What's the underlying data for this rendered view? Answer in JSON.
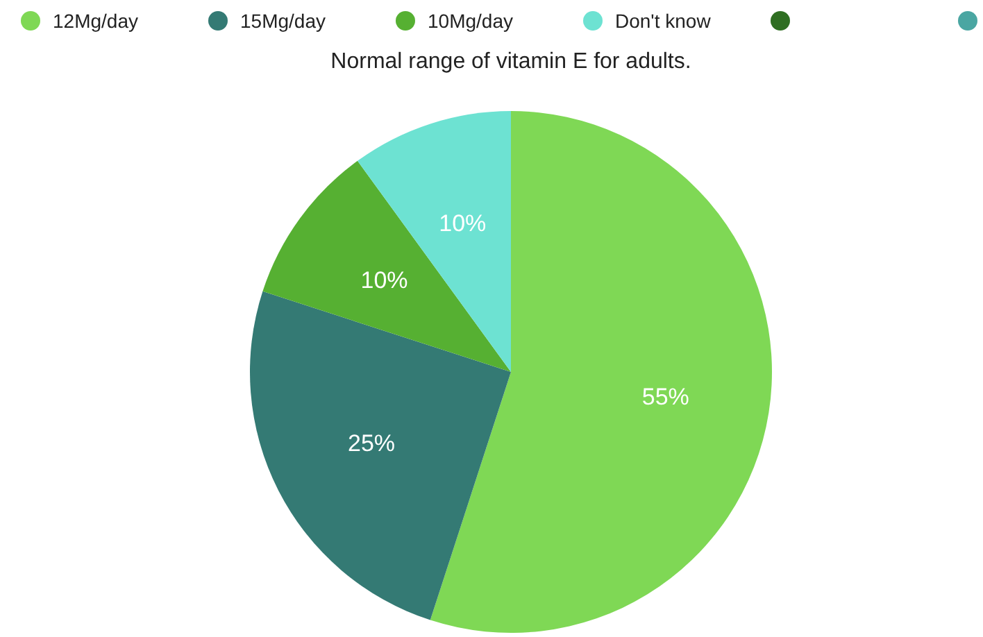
{
  "chart_data": {
    "type": "pie",
    "title": "Normal range of vitamin E for adults.",
    "categories": [
      "12Mg/day",
      "15Mg/day",
      "10Mg/day",
      "Don't know",
      null,
      null
    ],
    "values": [
      55,
      25,
      10,
      10,
      0,
      0
    ],
    "colors": [
      "#7fd855",
      "#347a74",
      "#56b032",
      "#6de2d2",
      "#2f6e22",
      "#4aa6a2"
    ],
    "value_labels": [
      "55%",
      "25%",
      "10%",
      "10%",
      null,
      null
    ],
    "legend": "top"
  }
}
